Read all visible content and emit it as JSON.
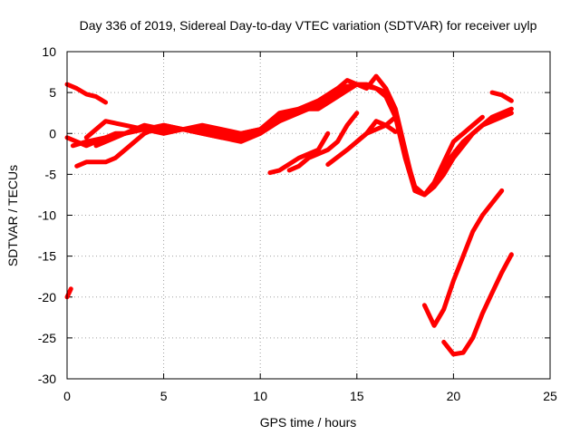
{
  "chart_data": {
    "type": "line",
    "title": "Day 336 of 2019, Sidereal Day-to-day VTEC variation (SDTVAR) for receiver uylp",
    "xlabel": "GPS time / hours",
    "ylabel": "SDTVAR / TECUs",
    "xlim": [
      0,
      25
    ],
    "ylim": [
      -30,
      10
    ],
    "xticks": [
      0,
      5,
      10,
      15,
      20,
      25
    ],
    "yticks": [
      10,
      5,
      0,
      -5,
      -10,
      -15,
      -20,
      -25,
      -30
    ],
    "grid": true,
    "legend": "none",
    "series_color": "#ff0000",
    "series": [
      {
        "name": "s1",
        "x": [
          0.0,
          0.5,
          1.0,
          1.5,
          2.0
        ],
        "y": [
          6.0,
          5.5,
          4.8,
          4.5,
          3.8
        ]
      },
      {
        "name": "s2",
        "x": [
          0.0,
          0.5,
          1.0,
          1.5,
          2.0,
          2.5,
          3.0,
          3.5
        ],
        "y": [
          -0.5,
          -1.0,
          -1.5,
          -1.0,
          -0.5,
          0.0,
          0.0,
          0.5
        ]
      },
      {
        "name": "s3",
        "x": [
          0.3,
          1.0,
          2.0,
          3.0,
          4.0,
          5.0,
          6.0,
          7.0,
          8.0,
          9.0,
          10.0,
          11.0,
          12.0,
          13.0,
          14.0,
          15.0,
          16.0,
          16.5
        ],
        "y": [
          -1.5,
          -1.0,
          -0.5,
          0.0,
          0.5,
          1.0,
          0.5,
          1.0,
          0.5,
          0.0,
          0.5,
          2.0,
          3.0,
          4.0,
          5.5,
          6.0,
          5.5,
          5.0
        ]
      },
      {
        "name": "s4",
        "x": [
          0.5,
          1.0,
          2.0,
          2.5,
          3.0,
          3.5,
          4.0,
          5.0,
          6.0,
          7.0,
          8.0,
          9.0,
          10.0,
          11.0,
          12.0,
          13.0,
          14.0,
          14.5,
          15.0,
          15.5,
          16.0,
          16.5,
          17.0,
          17.5,
          18.0,
          18.5,
          19.0,
          19.5,
          20.0,
          20.5,
          21.0,
          21.5,
          22.0,
          22.5,
          23.0
        ],
        "y": [
          -4.0,
          -3.5,
          -3.5,
          -3.0,
          -2.0,
          -1.0,
          0.0,
          1.0,
          0.5,
          0.0,
          -0.5,
          0.0,
          0.5,
          1.5,
          3.0,
          4.0,
          5.5,
          6.5,
          6.0,
          5.5,
          7.0,
          5.5,
          3.0,
          -2.0,
          -7.0,
          -7.5,
          -6.5,
          -4.0,
          -2.5,
          -1.0,
          0.0,
          1.0,
          2.0,
          2.5,
          3.0
        ]
      },
      {
        "name": "s5",
        "x": [
          1.0,
          2.0,
          3.0,
          4.0,
          5.0,
          6.0,
          7.0,
          8.0,
          9.0,
          10.0,
          11.0,
          12.0,
          13.0,
          14.0,
          15.0,
          16.0,
          16.5,
          17.0,
          17.5,
          18.0,
          18.5,
          19.0,
          19.5,
          20.0,
          20.5,
          21.0,
          21.5,
          22.0,
          22.5,
          23.0
        ],
        "y": [
          -0.5,
          1.5,
          1.0,
          0.5,
          0.0,
          0.5,
          0.0,
          -0.5,
          -1.0,
          0.0,
          1.5,
          2.5,
          3.5,
          5.0,
          6.0,
          5.5,
          4.5,
          2.0,
          -3.0,
          -7.0,
          -7.5,
          -6.5,
          -5.0,
          -3.0,
          -1.5,
          0.0,
          1.0,
          1.5,
          2.0,
          2.5
        ]
      },
      {
        "name": "s6",
        "x": [
          1.5,
          2.5,
          3.5,
          4.0,
          5.0,
          6.0,
          7.0,
          8.0,
          9.0,
          10.0,
          11.0,
          12.0,
          13.0,
          14.0,
          15.0,
          15.5,
          16.0,
          16.5,
          17.0,
          17.5,
          18.0,
          18.5,
          19.0,
          19.5,
          20.0,
          20.5,
          21.0,
          21.5
        ],
        "y": [
          -1.5,
          -0.5,
          0.5,
          1.0,
          0.5,
          0.5,
          0.5,
          0.0,
          -0.5,
          0.5,
          2.5,
          3.0,
          3.0,
          4.5,
          6.0,
          6.0,
          5.5,
          5.0,
          2.5,
          -2.5,
          -6.5,
          -7.5,
          -6.0,
          -3.5,
          -1.0,
          0.0,
          1.0,
          2.0
        ]
      },
      {
        "name": "s7",
        "x": [
          10.5,
          11.0,
          12.0,
          12.5,
          13.0,
          13.5
        ],
        "y": [
          -4.8,
          -4.5,
          -3.0,
          -2.5,
          -2.0,
          0.0
        ]
      },
      {
        "name": "s8",
        "x": [
          11.5,
          12.0,
          12.5,
          13.0,
          13.5,
          14.0,
          14.5,
          15.0
        ],
        "y": [
          -4.5,
          -4.0,
          -3.0,
          -2.5,
          -2.0,
          -1.0,
          1.0,
          2.5
        ]
      },
      {
        "name": "s9",
        "x": [
          13.5,
          14.5,
          15.5,
          16.5,
          17.0
        ],
        "y": [
          -3.8,
          -2.0,
          0.0,
          1.0,
          2.0
        ]
      },
      {
        "name": "s10",
        "x": [
          15.0,
          15.5,
          16.0,
          16.5,
          17.0
        ],
        "y": [
          -1.0,
          0.0,
          1.5,
          1.0,
          0.2
        ]
      },
      {
        "name": "s11",
        "x": [
          18.5,
          19.0,
          19.5,
          20.0,
          20.5,
          21.0,
          21.5,
          22.0,
          22.5
        ],
        "y": [
          -21.0,
          -23.5,
          -21.5,
          -18.0,
          -15.0,
          -12.0,
          -10.0,
          -8.5,
          -7.0
        ]
      },
      {
        "name": "s12",
        "x": [
          19.5,
          20.0,
          20.5,
          21.0,
          21.5,
          22.0,
          22.5,
          23.0
        ],
        "y": [
          -25.5,
          -27.0,
          -26.8,
          -25.0,
          -22.0,
          -19.5,
          -17.0,
          -14.8
        ]
      },
      {
        "name": "s13",
        "x": [
          22.0,
          22.5,
          23.0
        ],
        "y": [
          5.0,
          4.7,
          4.0
        ]
      },
      {
        "name": "s14",
        "x": [
          0.0,
          0.2
        ],
        "y": [
          -20.0,
          -19.0
        ]
      }
    ]
  }
}
